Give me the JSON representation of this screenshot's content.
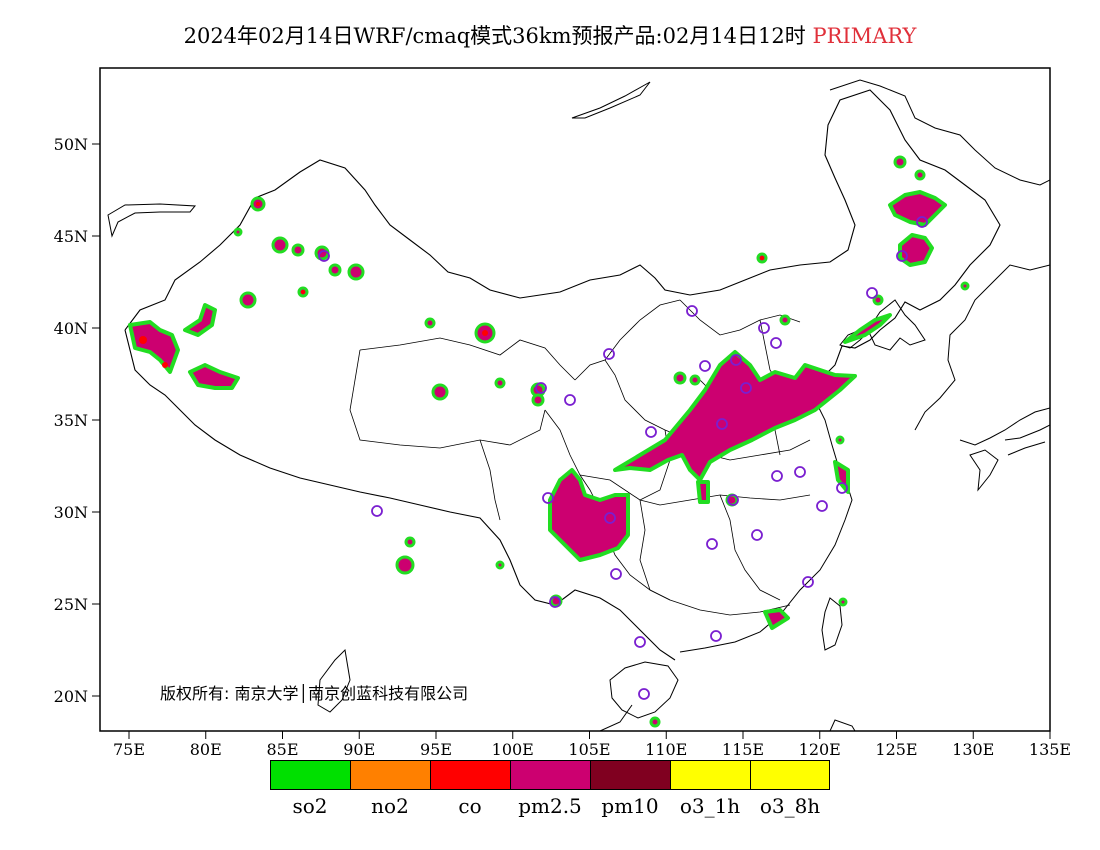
{
  "title": {
    "main": "2024年02月14日WRF/cmaq模式36km预报产品:02月14日12时",
    "highlight": "PRIMARY",
    "highlight_color": "#e0303a"
  },
  "map": {
    "lat_labels": [
      "50N",
      "45N",
      "40N",
      "35N",
      "30N",
      "25N",
      "20N"
    ],
    "lon_labels": [
      "75E",
      "80E",
      "85E",
      "90E",
      "95E",
      "100E",
      "105E",
      "110E",
      "115E",
      "120E",
      "125E",
      "130E",
      "135E"
    ],
    "pollution_color": "#cc0070",
    "station_marker_color": "#7a1fd0"
  },
  "copyright": "版权所有: 南京大学│南京创蓝科技有限公司",
  "legend": [
    {
      "label": "so2",
      "color": "#00e000"
    },
    {
      "label": "no2",
      "color": "#ff8000"
    },
    {
      "label": "co",
      "color": "#ff0000"
    },
    {
      "label": "pm2.5",
      "color": "#cc0070"
    },
    {
      "label": "pm10",
      "color": "#800020"
    },
    {
      "label": "o3_1h",
      "color": "#ffff00"
    },
    {
      "label": "o3_8h",
      "color": "#ffff00"
    }
  ]
}
